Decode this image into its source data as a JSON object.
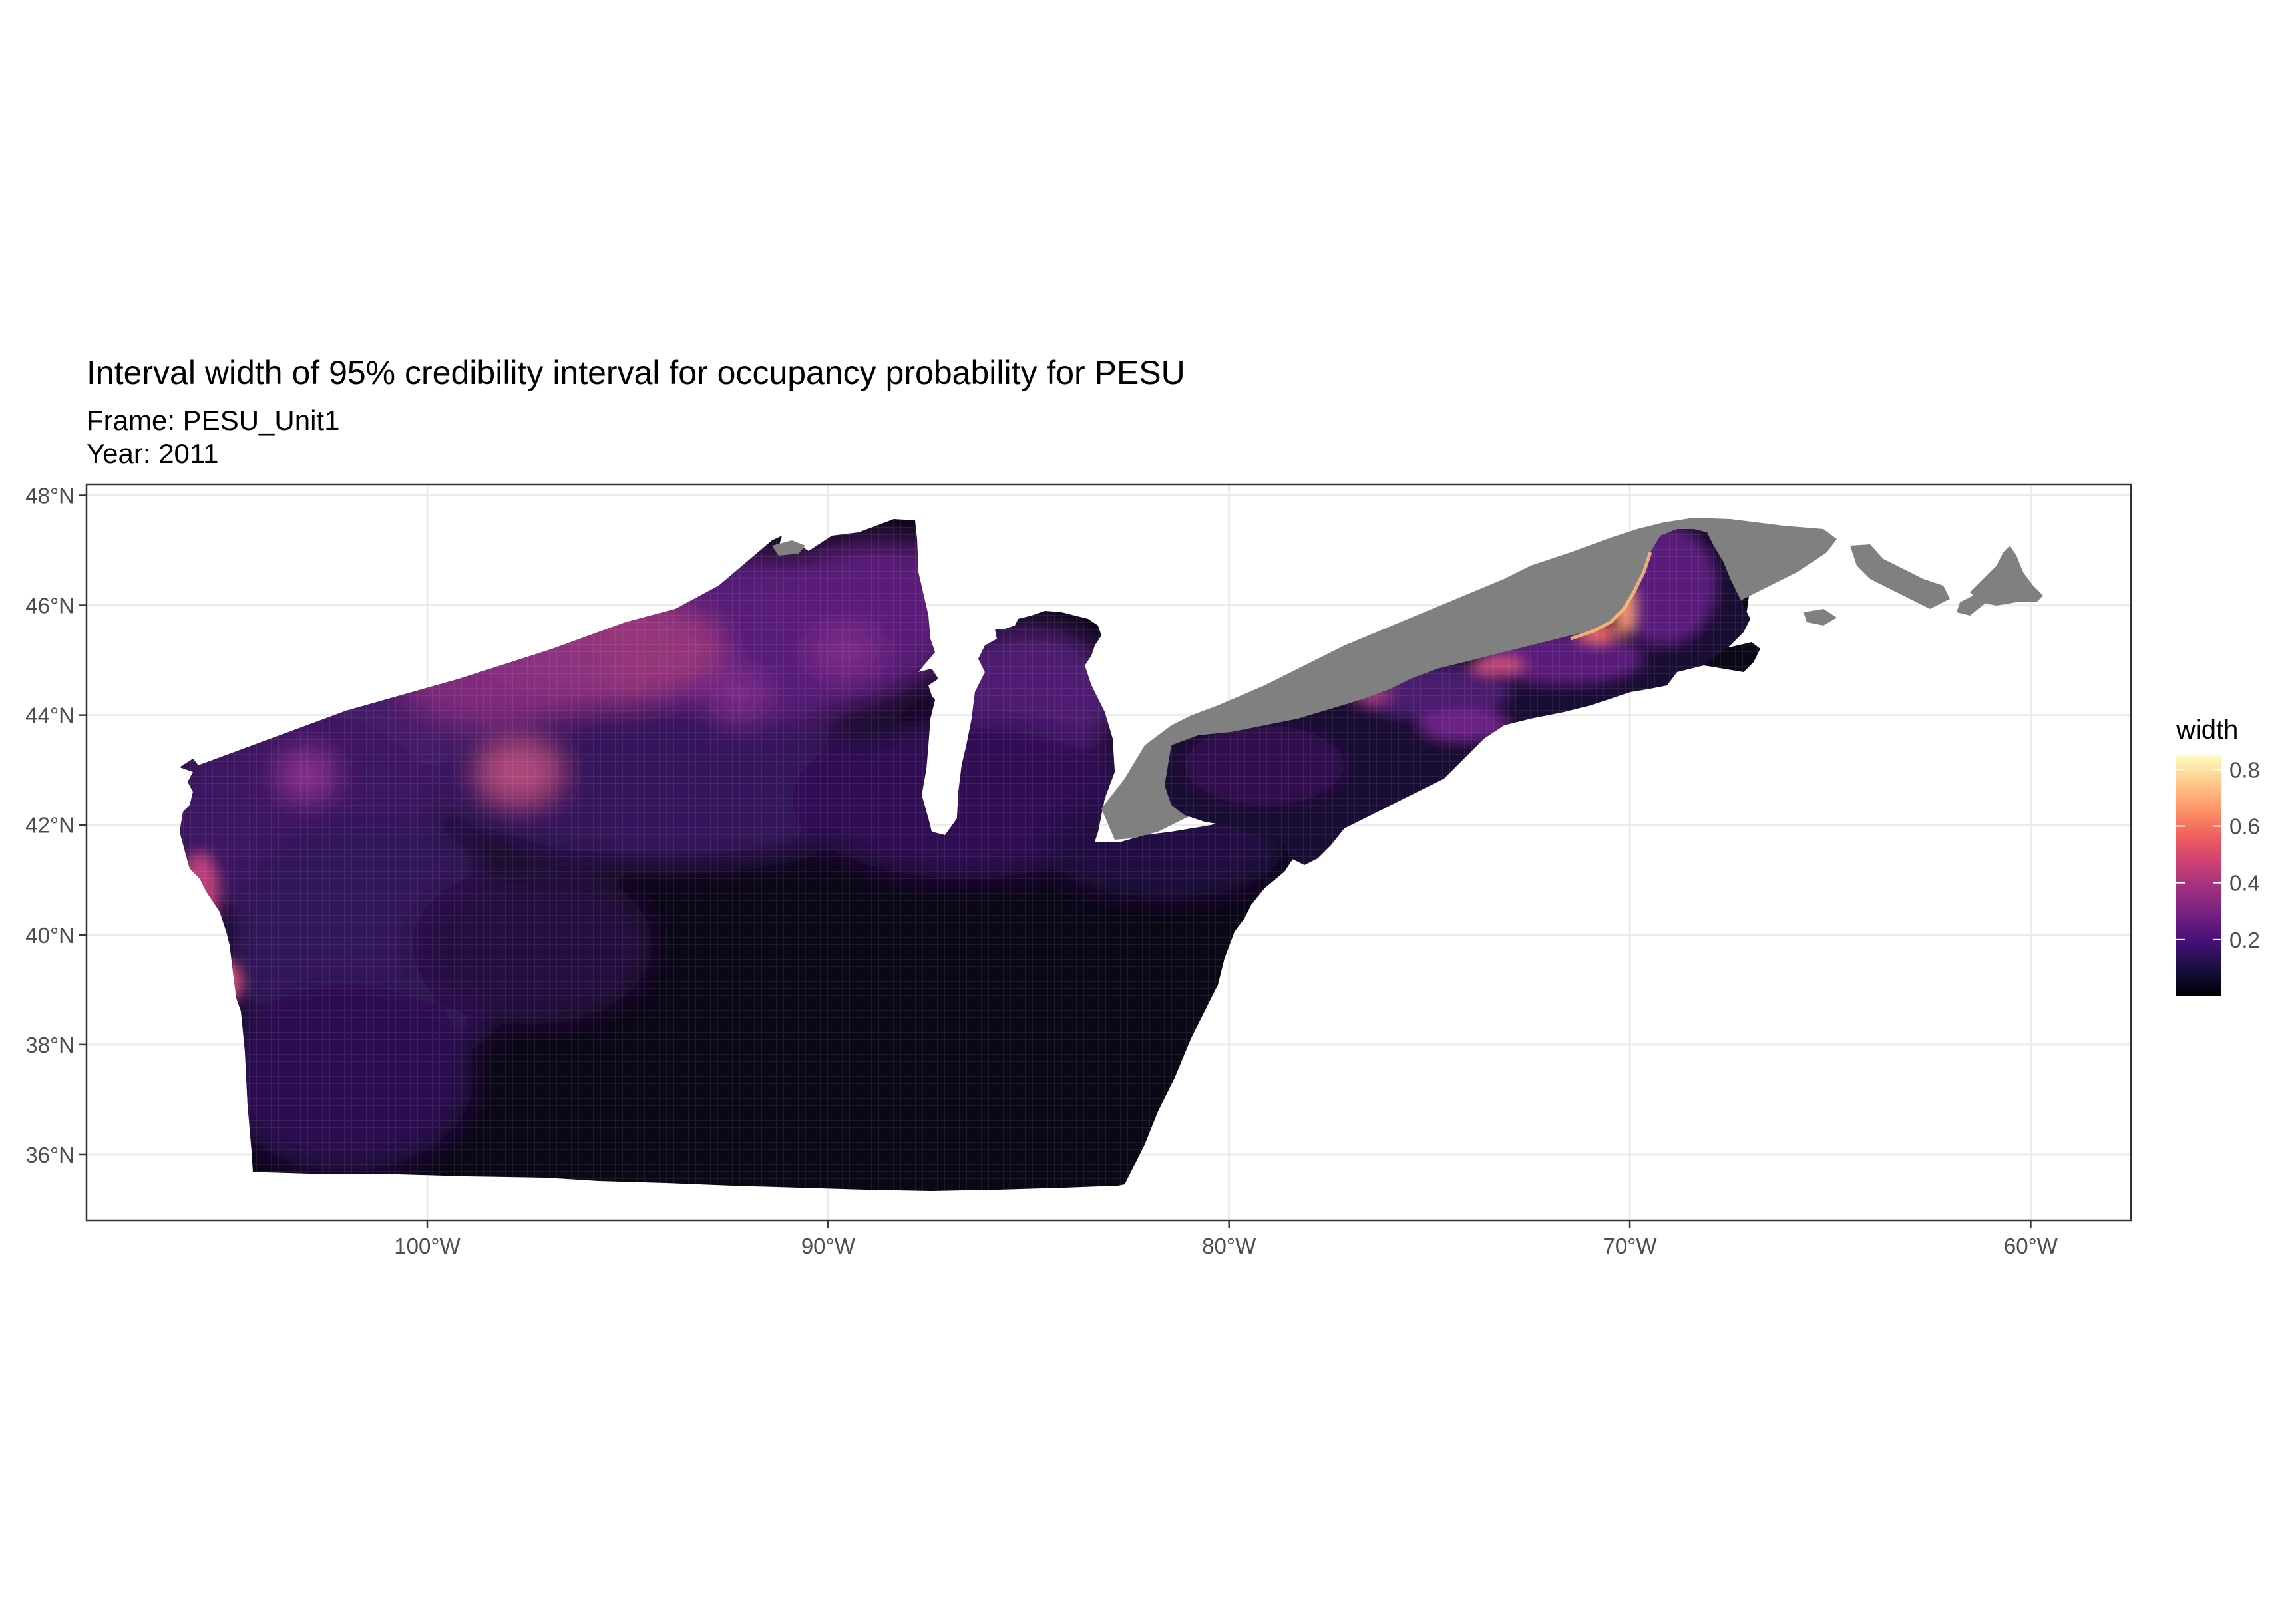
{
  "title": "Interval width of 95% credibility interval for occupancy probability for PESU",
  "subtitle_frame": "Frame: PESU_Unit1",
  "subtitle_year": "Year: 2011",
  "map": {
    "type": "raster-map",
    "projection": "longitude/latitude",
    "xlim": [
      -108.5,
      -57.5
    ],
    "ylim": [
      34.8,
      48.2
    ],
    "x_ticks": [
      {
        "value": -100,
        "label": "100°W"
      },
      {
        "value": -90,
        "label": "90°W"
      },
      {
        "value": -80,
        "label": "80°W"
      },
      {
        "value": -70,
        "label": "70°W"
      },
      {
        "value": -60,
        "label": "60°W"
      }
    ],
    "y_ticks": [
      {
        "value": 36,
        "label": "36°N"
      },
      {
        "value": 38,
        "label": "38°N"
      },
      {
        "value": 40,
        "label": "40°N"
      },
      {
        "value": 42,
        "label": "42°N"
      },
      {
        "value": 44,
        "label": "44°N"
      },
      {
        "value": 46,
        "label": "46°N"
      },
      {
        "value": 48,
        "label": "48°N"
      }
    ],
    "grid": true,
    "na_color": "#7f7f7f",
    "legend": {
      "title": "width",
      "position": "right",
      "palette": "magma",
      "colors": [
        "#000004",
        "#180f3d",
        "#440f76",
        "#721f81",
        "#9e2f7f",
        "#cd4071",
        "#f1605d",
        "#fd9668",
        "#feca8d",
        "#fcfdbf"
      ],
      "range": [
        0.0,
        0.85
      ],
      "breaks": [
        {
          "value": 0.2,
          "label": "0.2"
        },
        {
          "value": 0.4,
          "label": "0.4"
        },
        {
          "value": 0.6,
          "label": "0.6"
        },
        {
          "value": 0.8,
          "label": "0.8"
        }
      ]
    }
  }
}
